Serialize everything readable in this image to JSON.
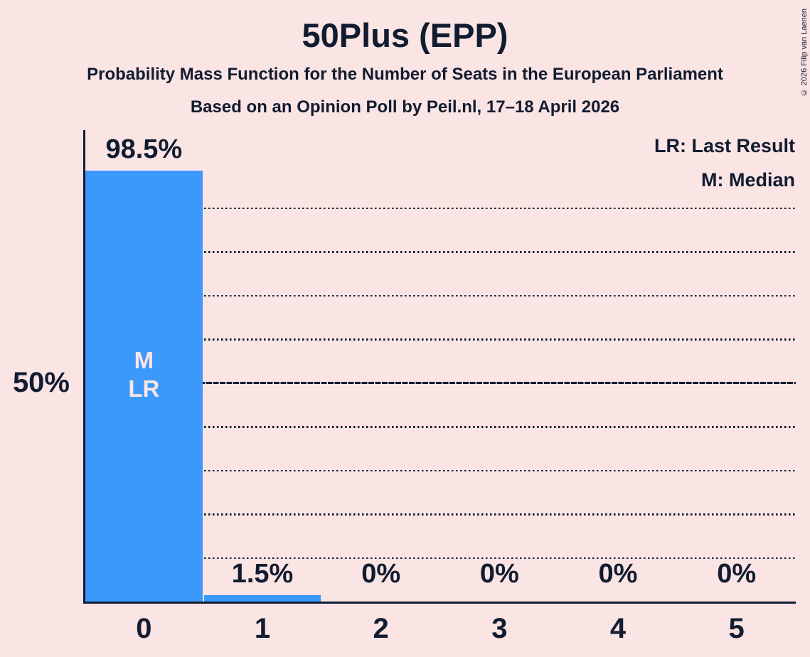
{
  "copyright": "© 2026 Filip van Laenen",
  "chart_data": {
    "type": "bar",
    "title": "50Plus (EPP)",
    "subtitle": "Probability Mass Function for the Number of Seats in the European Parliament",
    "poll_line": "Based on an Opinion Poll by Peil.nl, 17–18 April 2026",
    "categories": [
      "0",
      "1",
      "2",
      "3",
      "4",
      "5"
    ],
    "values": [
      98.5,
      1.5,
      0,
      0,
      0,
      0
    ],
    "value_labels": [
      "98.5%",
      "1.5%",
      "0%",
      "0%",
      "0%",
      "0%"
    ],
    "xlabel": "",
    "ylabel": "",
    "y_axis_label": "50%",
    "ylim": [
      0,
      100
    ],
    "gridlines_pct": [
      10,
      20,
      30,
      40,
      50,
      60,
      70,
      80,
      90
    ],
    "solid_gridline_pct": 50,
    "grid": true,
    "legend_position": "top-right",
    "legend": {
      "lr": "LR: Last Result",
      "m": "M: Median"
    },
    "bar_annotations": {
      "median": "M",
      "last_result": "LR",
      "annotated_category": "0",
      "median_seats": 0,
      "last_result_seats": 0
    },
    "colors": {
      "background": "#fae4e4",
      "bar": "#3a99fb",
      "ink": "#121c30",
      "bar_label": "#fae4e4"
    }
  }
}
